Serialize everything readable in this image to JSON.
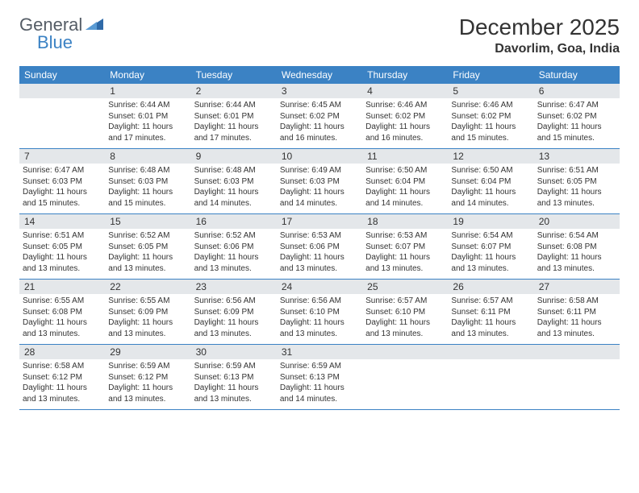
{
  "logo": {
    "text1": "General",
    "text2": "Blue",
    "icon_color": "#2f6aa8"
  },
  "title": "December 2025",
  "location": "Davorlim, Goa, India",
  "header_bg": "#3b82c4",
  "daynum_bg": "#e4e7ea",
  "cell_border": "#3b82c4",
  "weekdays": [
    "Sunday",
    "Monday",
    "Tuesday",
    "Wednesday",
    "Thursday",
    "Friday",
    "Saturday"
  ],
  "first_weekday_index": 1,
  "days": [
    {
      "n": 1,
      "sunrise": "6:44 AM",
      "sunset": "6:01 PM",
      "daylight": "11 hours and 17 minutes."
    },
    {
      "n": 2,
      "sunrise": "6:44 AM",
      "sunset": "6:01 PM",
      "daylight": "11 hours and 17 minutes."
    },
    {
      "n": 3,
      "sunrise": "6:45 AM",
      "sunset": "6:02 PM",
      "daylight": "11 hours and 16 minutes."
    },
    {
      "n": 4,
      "sunrise": "6:46 AM",
      "sunset": "6:02 PM",
      "daylight": "11 hours and 16 minutes."
    },
    {
      "n": 5,
      "sunrise": "6:46 AM",
      "sunset": "6:02 PM",
      "daylight": "11 hours and 15 minutes."
    },
    {
      "n": 6,
      "sunrise": "6:47 AM",
      "sunset": "6:02 PM",
      "daylight": "11 hours and 15 minutes."
    },
    {
      "n": 7,
      "sunrise": "6:47 AM",
      "sunset": "6:03 PM",
      "daylight": "11 hours and 15 minutes."
    },
    {
      "n": 8,
      "sunrise": "6:48 AM",
      "sunset": "6:03 PM",
      "daylight": "11 hours and 15 minutes."
    },
    {
      "n": 9,
      "sunrise": "6:48 AM",
      "sunset": "6:03 PM",
      "daylight": "11 hours and 14 minutes."
    },
    {
      "n": 10,
      "sunrise": "6:49 AM",
      "sunset": "6:03 PM",
      "daylight": "11 hours and 14 minutes."
    },
    {
      "n": 11,
      "sunrise": "6:50 AM",
      "sunset": "6:04 PM",
      "daylight": "11 hours and 14 minutes."
    },
    {
      "n": 12,
      "sunrise": "6:50 AM",
      "sunset": "6:04 PM",
      "daylight": "11 hours and 14 minutes."
    },
    {
      "n": 13,
      "sunrise": "6:51 AM",
      "sunset": "6:05 PM",
      "daylight": "11 hours and 13 minutes."
    },
    {
      "n": 14,
      "sunrise": "6:51 AM",
      "sunset": "6:05 PM",
      "daylight": "11 hours and 13 minutes."
    },
    {
      "n": 15,
      "sunrise": "6:52 AM",
      "sunset": "6:05 PM",
      "daylight": "11 hours and 13 minutes."
    },
    {
      "n": 16,
      "sunrise": "6:52 AM",
      "sunset": "6:06 PM",
      "daylight": "11 hours and 13 minutes."
    },
    {
      "n": 17,
      "sunrise": "6:53 AM",
      "sunset": "6:06 PM",
      "daylight": "11 hours and 13 minutes."
    },
    {
      "n": 18,
      "sunrise": "6:53 AM",
      "sunset": "6:07 PM",
      "daylight": "11 hours and 13 minutes."
    },
    {
      "n": 19,
      "sunrise": "6:54 AM",
      "sunset": "6:07 PM",
      "daylight": "11 hours and 13 minutes."
    },
    {
      "n": 20,
      "sunrise": "6:54 AM",
      "sunset": "6:08 PM",
      "daylight": "11 hours and 13 minutes."
    },
    {
      "n": 21,
      "sunrise": "6:55 AM",
      "sunset": "6:08 PM",
      "daylight": "11 hours and 13 minutes."
    },
    {
      "n": 22,
      "sunrise": "6:55 AM",
      "sunset": "6:09 PM",
      "daylight": "11 hours and 13 minutes."
    },
    {
      "n": 23,
      "sunrise": "6:56 AM",
      "sunset": "6:09 PM",
      "daylight": "11 hours and 13 minutes."
    },
    {
      "n": 24,
      "sunrise": "6:56 AM",
      "sunset": "6:10 PM",
      "daylight": "11 hours and 13 minutes."
    },
    {
      "n": 25,
      "sunrise": "6:57 AM",
      "sunset": "6:10 PM",
      "daylight": "11 hours and 13 minutes."
    },
    {
      "n": 26,
      "sunrise": "6:57 AM",
      "sunset": "6:11 PM",
      "daylight": "11 hours and 13 minutes."
    },
    {
      "n": 27,
      "sunrise": "6:58 AM",
      "sunset": "6:11 PM",
      "daylight": "11 hours and 13 minutes."
    },
    {
      "n": 28,
      "sunrise": "6:58 AM",
      "sunset": "6:12 PM",
      "daylight": "11 hours and 13 minutes."
    },
    {
      "n": 29,
      "sunrise": "6:59 AM",
      "sunset": "6:12 PM",
      "daylight": "11 hours and 13 minutes."
    },
    {
      "n": 30,
      "sunrise": "6:59 AM",
      "sunset": "6:13 PM",
      "daylight": "11 hours and 13 minutes."
    },
    {
      "n": 31,
      "sunrise": "6:59 AM",
      "sunset": "6:13 PM",
      "daylight": "11 hours and 14 minutes."
    }
  ],
  "labels": {
    "sunrise": "Sunrise:",
    "sunset": "Sunset:",
    "daylight": "Daylight:"
  }
}
